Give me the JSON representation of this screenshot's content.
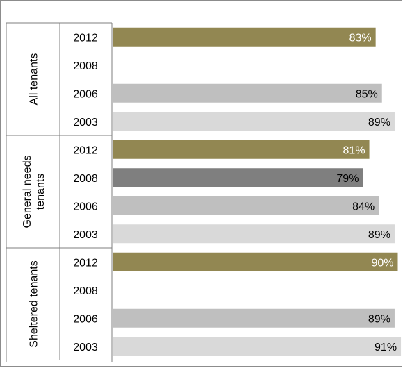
{
  "chart_data": {
    "type": "bar",
    "orientation": "horizontal",
    "title": "",
    "xlabel": "",
    "ylabel": "",
    "xlim": [
      0,
      100
    ],
    "grid": false,
    "legend": "none",
    "groups": [
      {
        "label": "All tenants",
        "rows": [
          {
            "year": "2012",
            "value": 83,
            "label": "83%"
          },
          {
            "year": "2008",
            "value": null,
            "label": ""
          },
          {
            "year": "2006",
            "value": 85,
            "label": "85%"
          },
          {
            "year": "2003",
            "value": 89,
            "label": "89%"
          }
        ]
      },
      {
        "label": "General needs tenants",
        "label_lines": [
          "General needs",
          "tenants"
        ],
        "rows": [
          {
            "year": "2012",
            "value": 81,
            "label": "81%"
          },
          {
            "year": "2008",
            "value": 79,
            "label": "79%"
          },
          {
            "year": "2006",
            "value": 84,
            "label": "84%"
          },
          {
            "year": "2003",
            "value": 89,
            "label": "89%"
          }
        ]
      },
      {
        "label": "Sheltered tenants",
        "rows": [
          {
            "year": "2012",
            "value": 90,
            "label": "90%"
          },
          {
            "year": "2008",
            "value": null,
            "label": ""
          },
          {
            "year": "2006",
            "value": 89,
            "label": "89%"
          },
          {
            "year": "2003",
            "value": 91,
            "label": "91%"
          }
        ]
      }
    ],
    "year_colors": {
      "2012": "#928752",
      "2008": "#7f7f7f",
      "2006": "#bfbfbf",
      "2003": "#d9d9d9"
    },
    "label_colors": {
      "2012": "#ffffff",
      "2008": "#000000",
      "2006": "#000000",
      "2003": "#000000"
    }
  }
}
